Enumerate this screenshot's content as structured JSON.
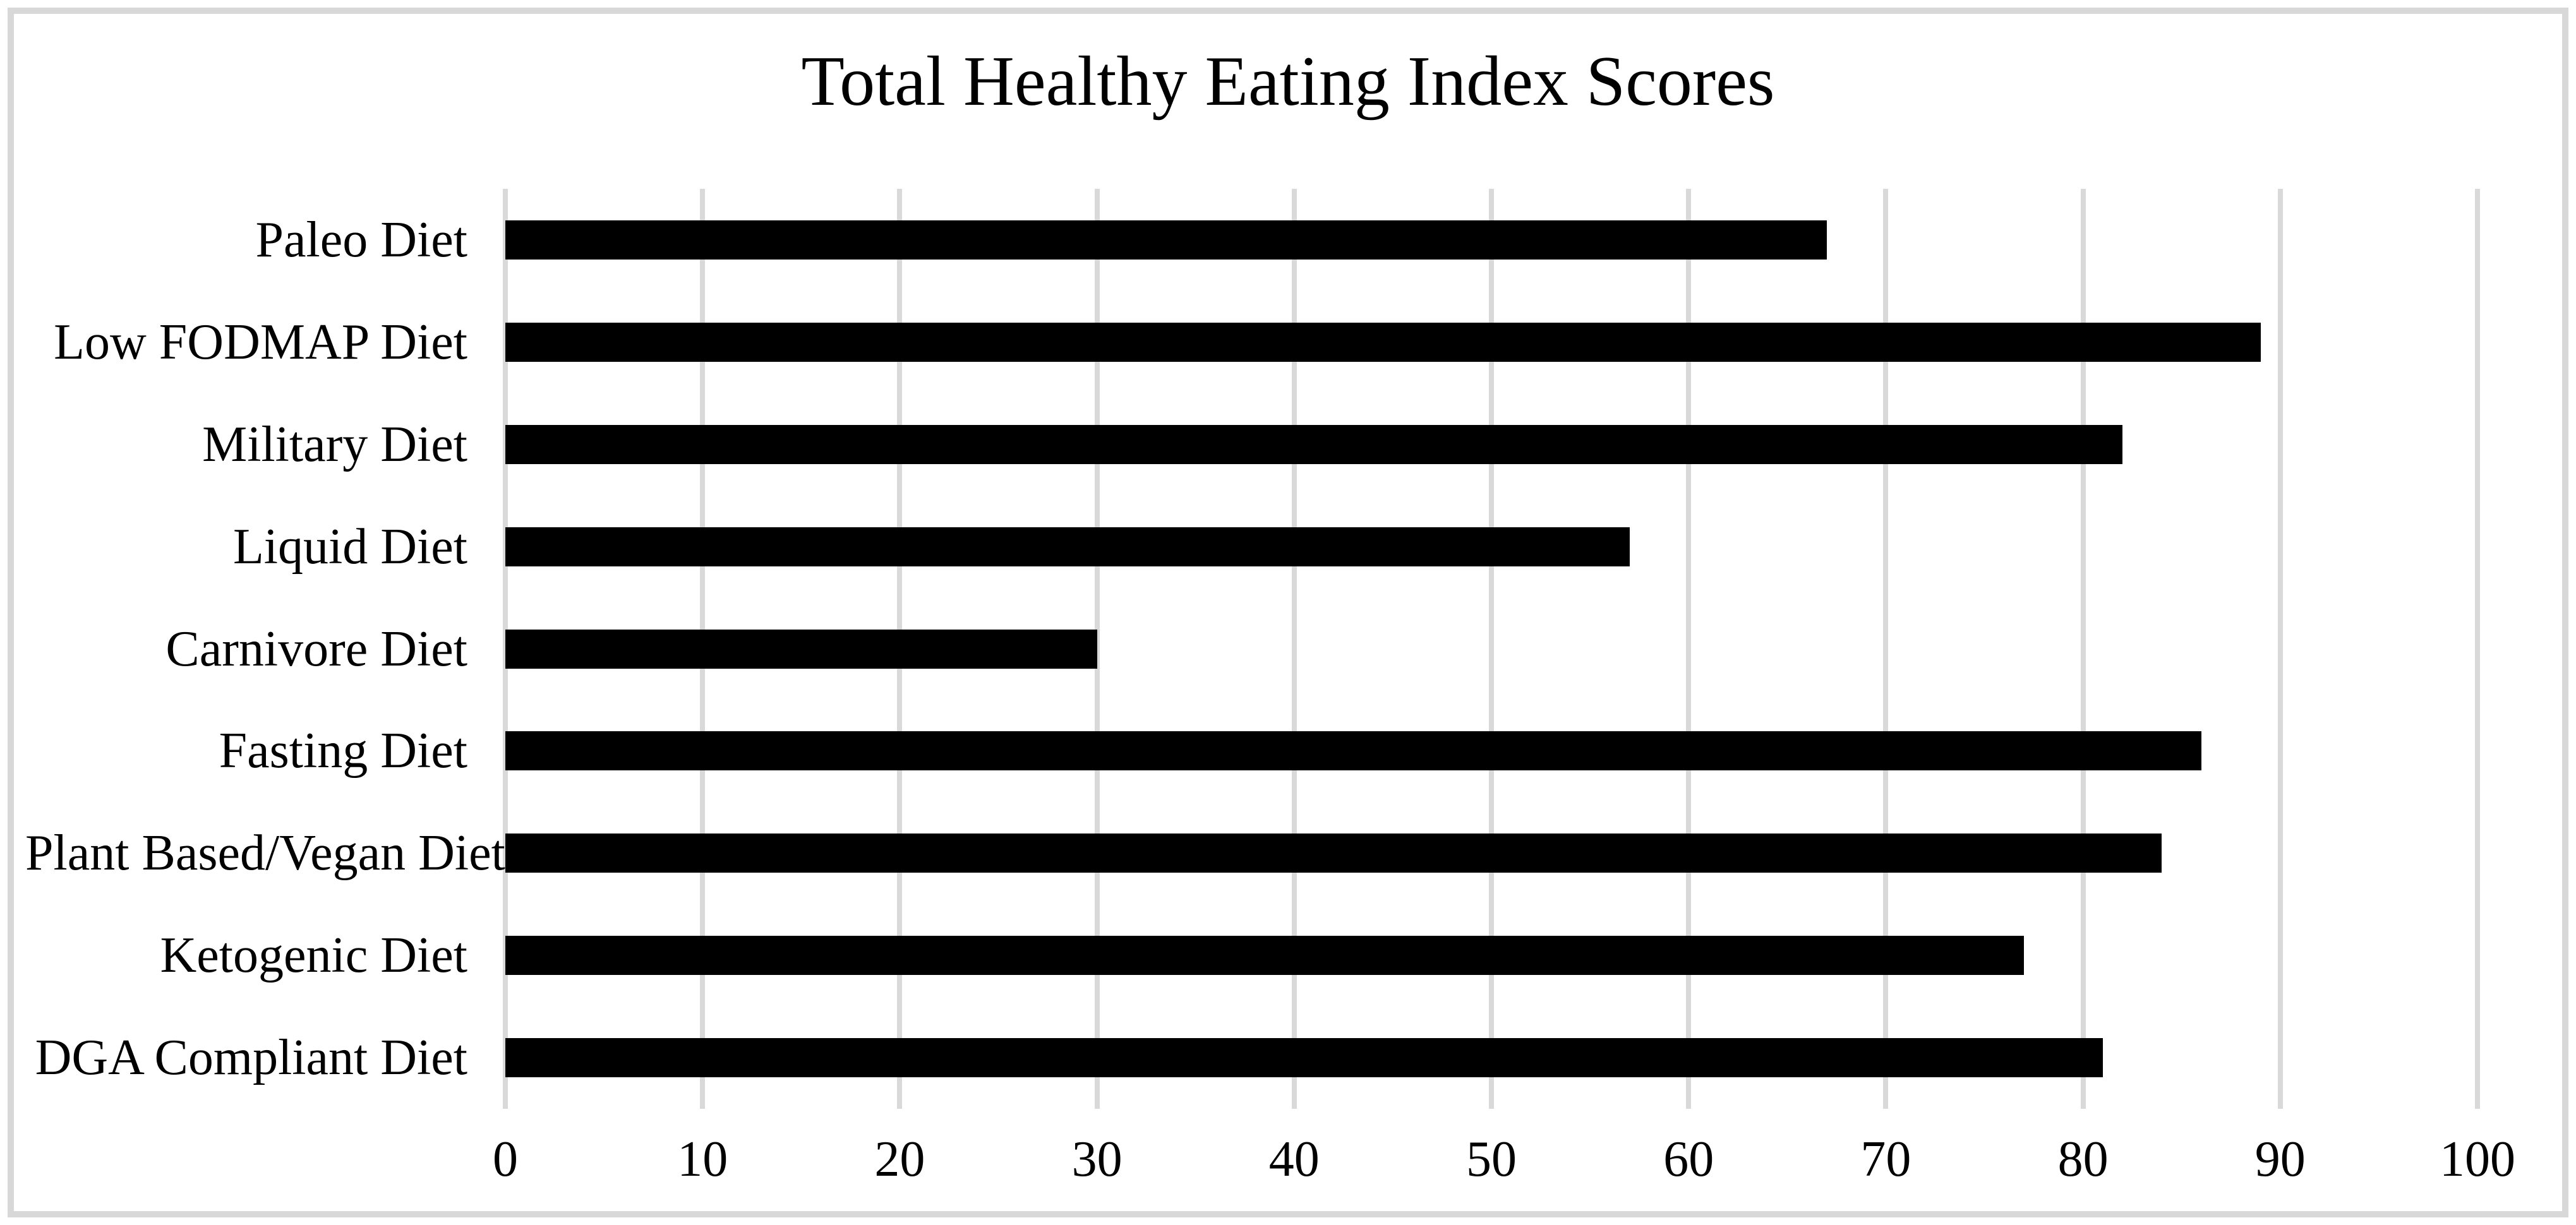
{
  "page": {
    "background_color": "#ffffff",
    "frame_border_color": "#d8d8d8"
  },
  "chart_data": {
    "type": "bar",
    "orientation": "horizontal",
    "title": "Total Healthy Eating Index Scores",
    "categories": [
      "Paleo Diet",
      "Low FODMAP Diet",
      "Military Diet",
      "Liquid Diet",
      "Carnivore Diet",
      "Fasting Diet",
      "Plant Based/Vegan Diet",
      "Ketogenic Diet",
      "DGA Compliant Diet"
    ],
    "values": [
      67,
      89,
      82,
      57,
      30,
      86,
      84,
      77,
      81
    ],
    "xlabel": "",
    "ylabel": "",
    "xlim": [
      0,
      100
    ],
    "xticks": [
      0,
      10,
      20,
      30,
      40,
      50,
      60,
      70,
      80,
      90,
      100
    ],
    "grid": true,
    "legend": false,
    "bar_color": "#000000",
    "gridline_color": "#d9d9d9"
  }
}
